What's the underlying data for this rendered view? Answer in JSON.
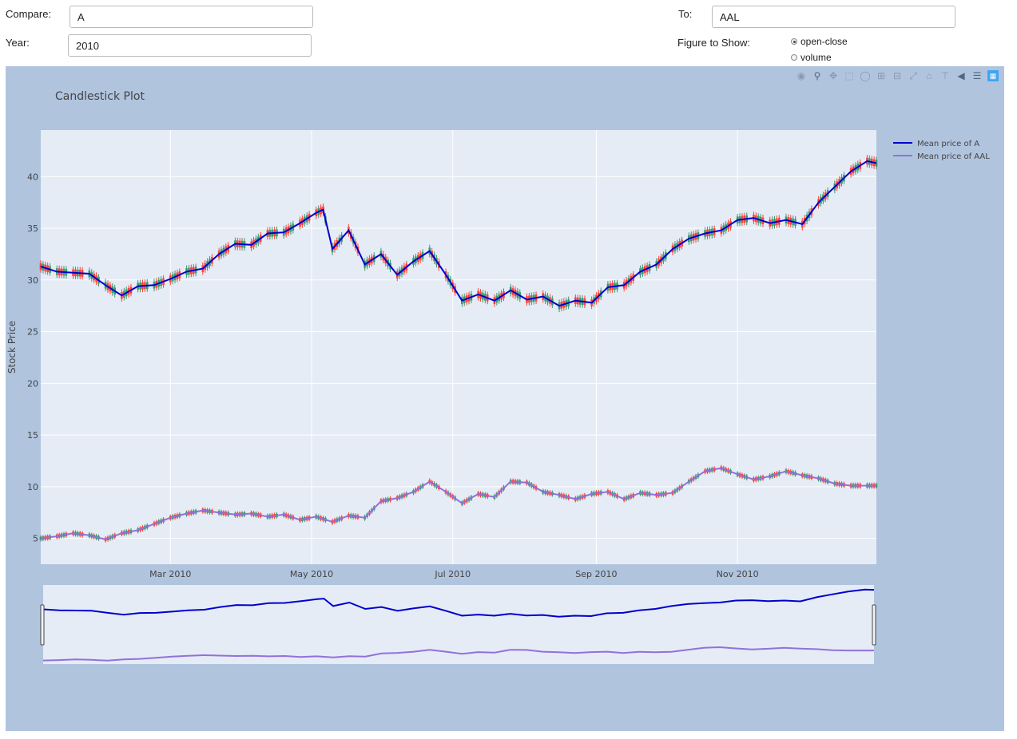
{
  "controls": {
    "compare_label": "Compare:",
    "compare_value": "A",
    "year_label": "Year:",
    "year_value": "2010",
    "to_label": "To:",
    "to_value": "AAL",
    "figure_label": "Figure to Show:",
    "options": [
      "open-close",
      "volume"
    ],
    "selected": "open-close"
  },
  "modebar": [
    "camera-icon",
    "zoom-icon",
    "pan-icon",
    "box-select-icon",
    "lasso-icon",
    "zoom-in-icon",
    "zoom-out-icon",
    "autoscale-icon",
    "home-icon",
    "spike-lines-icon",
    "hover-closest-icon",
    "hover-compare-icon",
    "plotly-logo-icon"
  ],
  "chart_data": {
    "type": "candlestick",
    "title": "Candlestick Plot",
    "ylabel": "Stock Price",
    "xlabel": "",
    "x_range": [
      "2010-01-04",
      "2010-12-31"
    ],
    "ylim": [
      2.5,
      44.5
    ],
    "x_ticks": [
      {
        "date": "2010-03-01",
        "label": "Mar 2010"
      },
      {
        "date": "2010-05-01",
        "label": "May 2010"
      },
      {
        "date": "2010-07-01",
        "label": "Jul 2010"
      },
      {
        "date": "2010-09-01",
        "label": "Sep 2010"
      },
      {
        "date": "2010-11-01",
        "label": "Nov 2010"
      }
    ],
    "y_ticks": [
      5,
      10,
      15,
      20,
      25,
      30,
      35,
      40
    ],
    "increasing_color": "#3d9970",
    "decreasing_color": "#ff4136",
    "grid": true,
    "legend_position": "top-right",
    "rangeslider": true,
    "series": [
      {
        "name": "Mean price of A",
        "color": "#0000cd",
        "points": [
          [
            "2010-01-04",
            31.3
          ],
          [
            "2010-01-11",
            30.8
          ],
          [
            "2010-01-18",
            30.7
          ],
          [
            "2010-01-25",
            30.6
          ],
          [
            "2010-02-01",
            29.5
          ],
          [
            "2010-02-08",
            28.5
          ],
          [
            "2010-02-15",
            29.4
          ],
          [
            "2010-02-22",
            29.5
          ],
          [
            "2010-03-01",
            30.1
          ],
          [
            "2010-03-08",
            30.8
          ],
          [
            "2010-03-15",
            31.1
          ],
          [
            "2010-03-22",
            32.5
          ],
          [
            "2010-03-29",
            33.5
          ],
          [
            "2010-04-05",
            33.4
          ],
          [
            "2010-04-12",
            34.5
          ],
          [
            "2010-04-19",
            34.6
          ],
          [
            "2010-04-26",
            35.5
          ],
          [
            "2010-05-03",
            36.5
          ],
          [
            "2010-05-06",
            36.8
          ],
          [
            "2010-05-10",
            33.0
          ],
          [
            "2010-05-17",
            34.8
          ],
          [
            "2010-05-24",
            31.5
          ],
          [
            "2010-05-31",
            32.5
          ],
          [
            "2010-06-07",
            30.5
          ],
          [
            "2010-06-14",
            31.8
          ],
          [
            "2010-06-21",
            32.8
          ],
          [
            "2010-06-28",
            30.5
          ],
          [
            "2010-07-05",
            28.0
          ],
          [
            "2010-07-12",
            28.6
          ],
          [
            "2010-07-19",
            28.0
          ],
          [
            "2010-07-26",
            29.0
          ],
          [
            "2010-08-02",
            28.1
          ],
          [
            "2010-08-09",
            28.4
          ],
          [
            "2010-08-16",
            27.5
          ],
          [
            "2010-08-23",
            28.0
          ],
          [
            "2010-08-30",
            27.8
          ],
          [
            "2010-09-06",
            29.3
          ],
          [
            "2010-09-13",
            29.5
          ],
          [
            "2010-09-20",
            30.8
          ],
          [
            "2010-09-27",
            31.5
          ],
          [
            "2010-10-04",
            33.0
          ],
          [
            "2010-10-11",
            34.0
          ],
          [
            "2010-10-18",
            34.5
          ],
          [
            "2010-10-25",
            34.8
          ],
          [
            "2010-11-01",
            35.8
          ],
          [
            "2010-11-08",
            36.0
          ],
          [
            "2010-11-15",
            35.5
          ],
          [
            "2010-11-22",
            35.8
          ],
          [
            "2010-11-29",
            35.4
          ],
          [
            "2010-12-06",
            37.5
          ],
          [
            "2010-12-13",
            39.0
          ],
          [
            "2010-12-20",
            40.5
          ],
          [
            "2010-12-27",
            41.5
          ],
          [
            "2010-12-31",
            41.3
          ]
        ]
      },
      {
        "name": "Mean price of  AAL",
        "color": "#9370db",
        "points": [
          [
            "2010-01-04",
            5.0
          ],
          [
            "2010-01-11",
            5.2
          ],
          [
            "2010-01-18",
            5.5
          ],
          [
            "2010-01-25",
            5.3
          ],
          [
            "2010-02-01",
            4.9
          ],
          [
            "2010-02-08",
            5.5
          ],
          [
            "2010-02-15",
            5.8
          ],
          [
            "2010-02-22",
            6.4
          ],
          [
            "2010-03-01",
            7.0
          ],
          [
            "2010-03-08",
            7.4
          ],
          [
            "2010-03-15",
            7.7
          ],
          [
            "2010-03-22",
            7.5
          ],
          [
            "2010-03-29",
            7.3
          ],
          [
            "2010-04-05",
            7.4
          ],
          [
            "2010-04-12",
            7.1
          ],
          [
            "2010-04-19",
            7.3
          ],
          [
            "2010-04-26",
            6.8
          ],
          [
            "2010-05-03",
            7.1
          ],
          [
            "2010-05-10",
            6.6
          ],
          [
            "2010-05-17",
            7.2
          ],
          [
            "2010-05-24",
            7.0
          ],
          [
            "2010-05-31",
            8.6
          ],
          [
            "2010-06-07",
            8.9
          ],
          [
            "2010-06-14",
            9.5
          ],
          [
            "2010-06-21",
            10.5
          ],
          [
            "2010-06-28",
            9.5
          ],
          [
            "2010-07-05",
            8.4
          ],
          [
            "2010-07-12",
            9.3
          ],
          [
            "2010-07-19",
            9.0
          ],
          [
            "2010-07-26",
            10.5
          ],
          [
            "2010-08-02",
            10.4
          ],
          [
            "2010-08-09",
            9.5
          ],
          [
            "2010-08-16",
            9.2
          ],
          [
            "2010-08-23",
            8.8
          ],
          [
            "2010-08-30",
            9.3
          ],
          [
            "2010-09-06",
            9.5
          ],
          [
            "2010-09-13",
            8.8
          ],
          [
            "2010-09-20",
            9.4
          ],
          [
            "2010-09-27",
            9.2
          ],
          [
            "2010-10-04",
            9.4
          ],
          [
            "2010-10-11",
            10.5
          ],
          [
            "2010-10-18",
            11.5
          ],
          [
            "2010-10-25",
            11.8
          ],
          [
            "2010-11-01",
            11.2
          ],
          [
            "2010-11-08",
            10.7
          ],
          [
            "2010-11-15",
            11.0
          ],
          [
            "2010-11-22",
            11.5
          ],
          [
            "2010-11-29",
            11.1
          ],
          [
            "2010-12-06",
            10.8
          ],
          [
            "2010-12-13",
            10.3
          ],
          [
            "2010-12-20",
            10.1
          ],
          [
            "2010-12-31",
            10.1
          ]
        ]
      }
    ]
  }
}
